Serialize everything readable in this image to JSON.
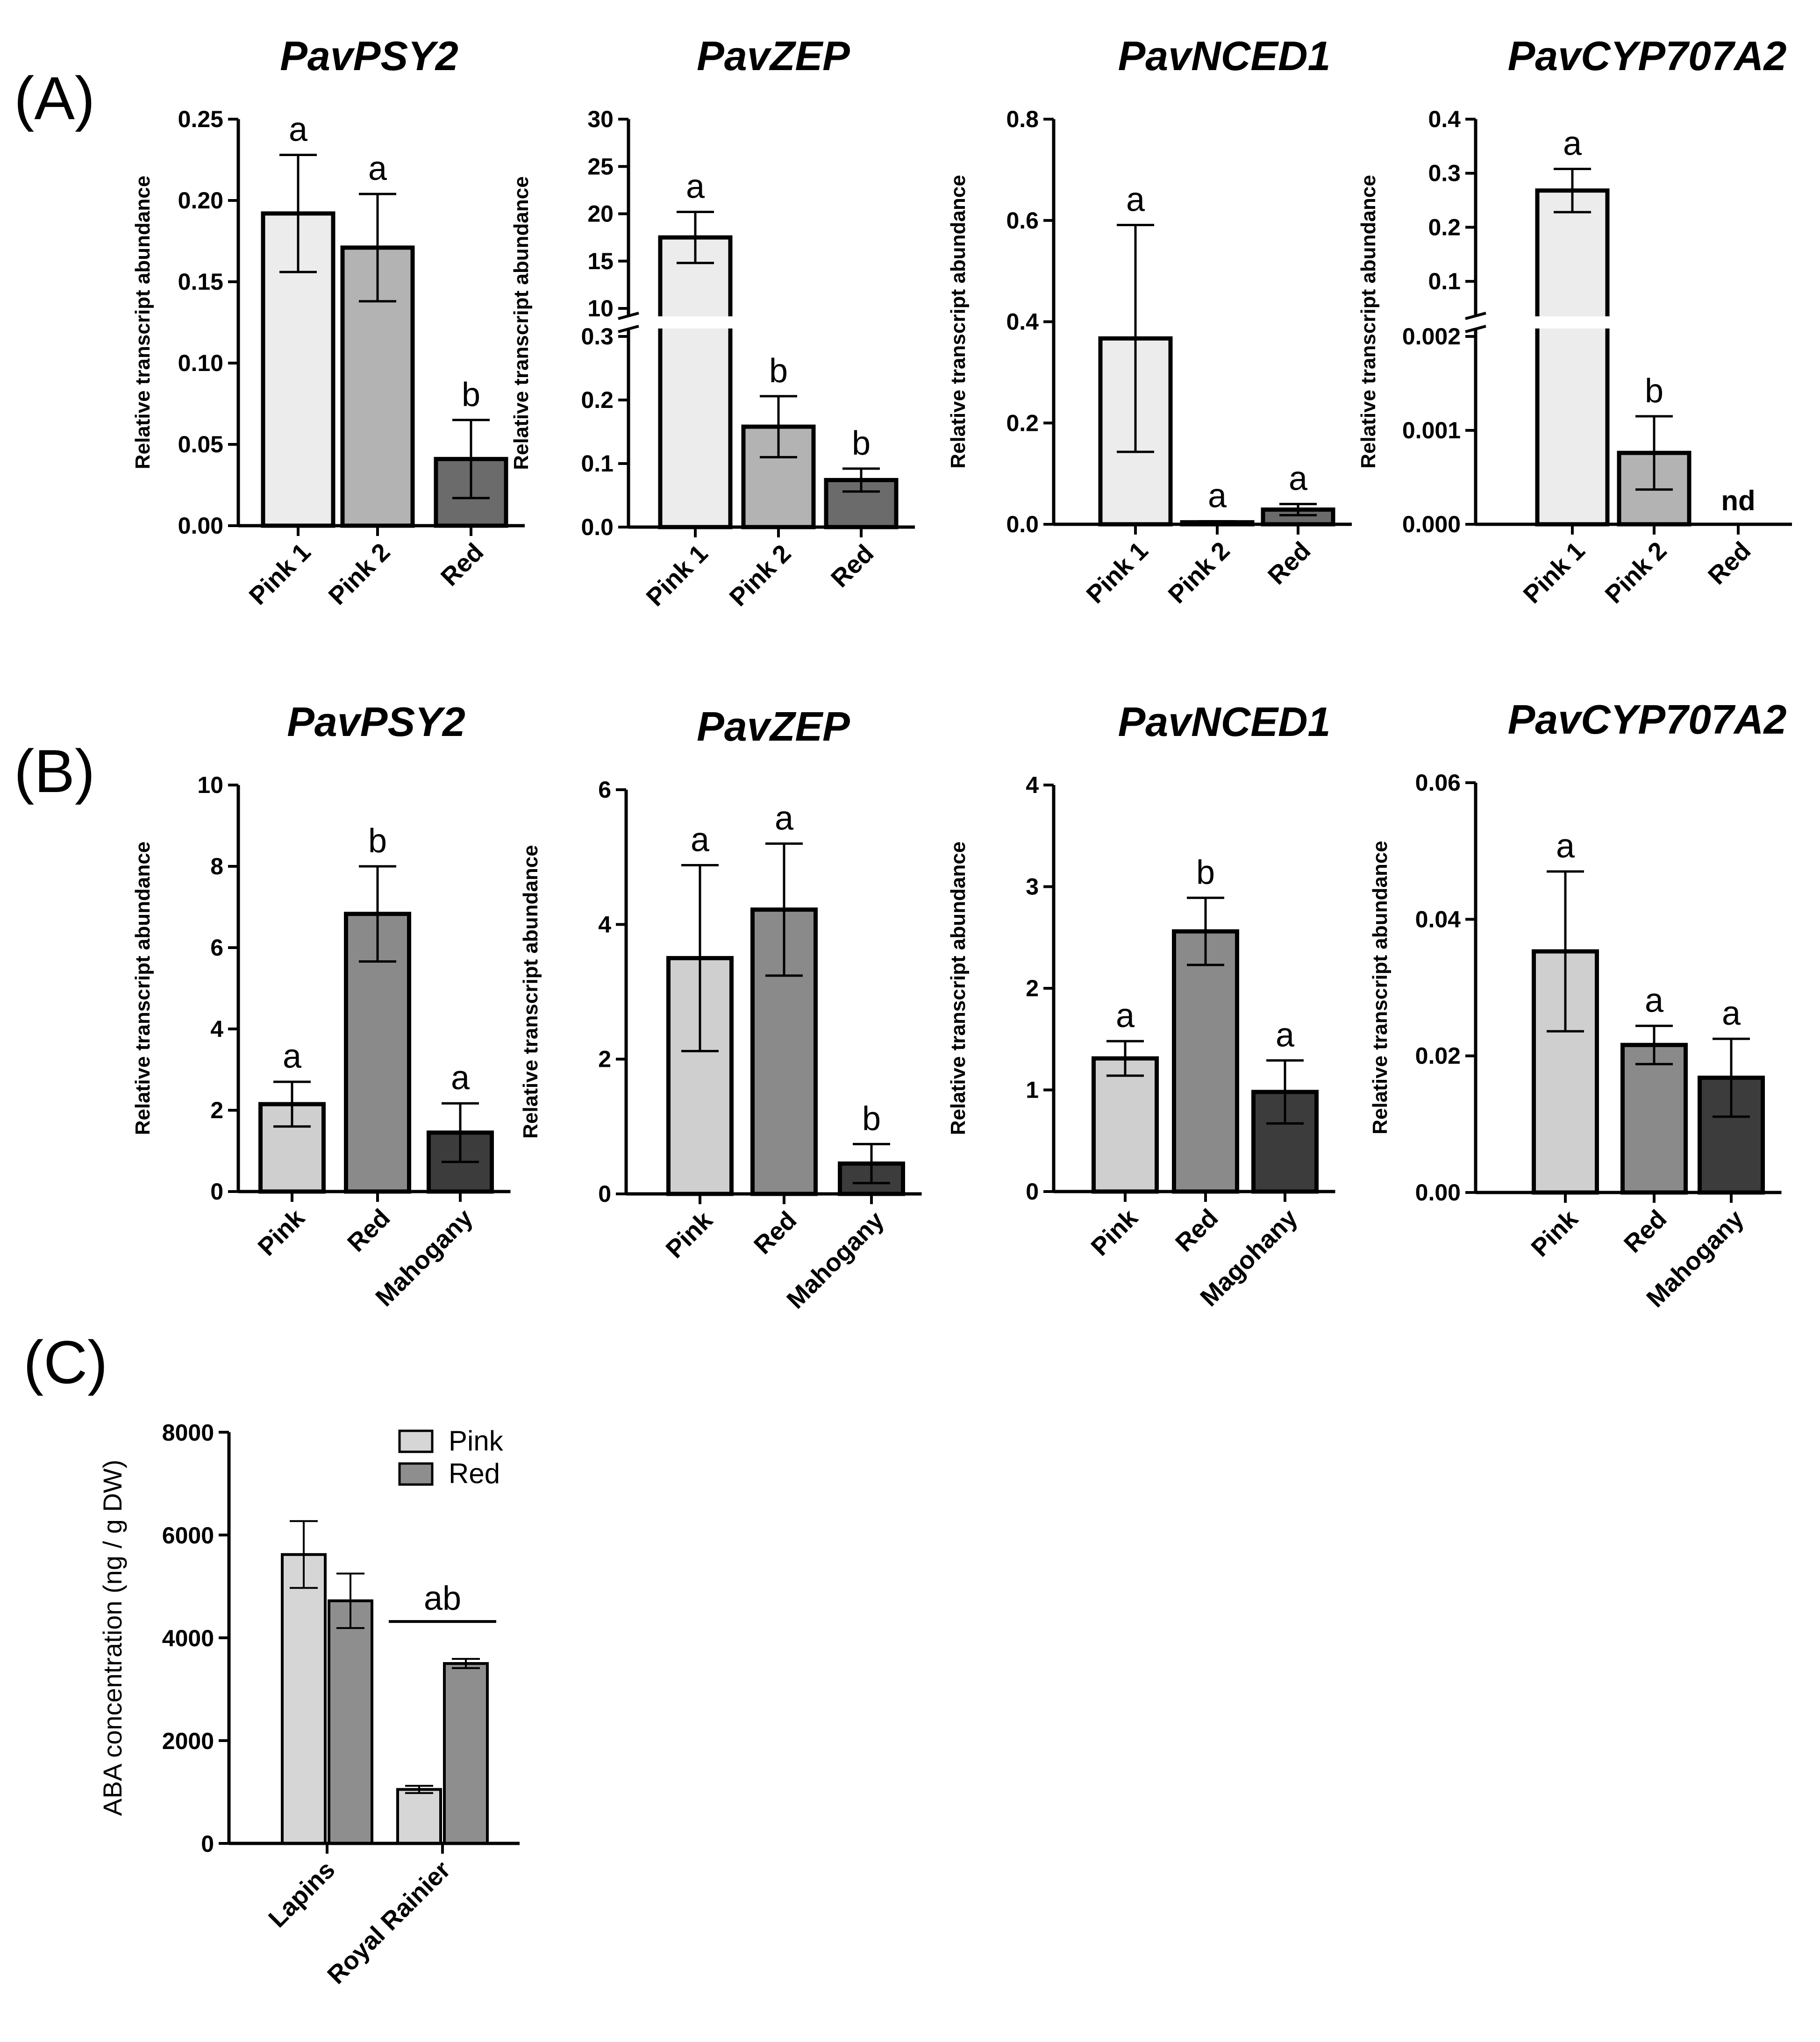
{
  "panel_labels": {
    "a": "(A)",
    "b": "(B)",
    "c": "(C)"
  },
  "colors": {
    "pink1": "#ececec",
    "pink2": "#b3b3b3",
    "red_a": "#6b6b6b",
    "pink_b": "#cfcfcf",
    "red_b": "#8a8a8a",
    "mahogany": "#3c3c3c",
    "abaPink": "#d6d6d6",
    "abaRed": "#8e8e8e"
  },
  "chart_data": [
    {
      "id": "A1",
      "type": "bar",
      "title": "PavPSY2",
      "ylabel": "Relative transcript abundance",
      "categories": [
        "Pink 1",
        "Pink 2",
        "Red"
      ],
      "values": [
        0.192,
        0.171,
        0.041
      ],
      "errors": [
        0.036,
        0.033,
        0.024
      ],
      "significance": [
        "a",
        "a",
        "b"
      ],
      "colors": [
        "pink1",
        "pink2",
        "red_a"
      ],
      "ylim": [
        0,
        0.25
      ],
      "ticks": [
        0,
        0.05,
        0.1,
        0.15,
        0.2,
        0.25
      ],
      "tick_labels": [
        "0.00",
        "0.05",
        "0.10",
        "0.15",
        "0.20",
        "0.25"
      ]
    },
    {
      "id": "A2",
      "type": "bar",
      "title": "PavZEP",
      "ylabel": "Relative transcript abundance",
      "categories": [
        "Pink 1",
        "Pink 2",
        "Red"
      ],
      "values": [
        17.5,
        0.158,
        0.074
      ],
      "errors": [
        2.7,
        0.048,
        0.018
      ],
      "significance": [
        "a",
        "b",
        "b"
      ],
      "colors": [
        "pink1",
        "pink2",
        "red_a"
      ],
      "axis_break": {
        "lower": [
          0,
          0.3
        ],
        "upper": [
          10,
          30
        ]
      },
      "ticks": [
        0,
        0.1,
        0.2,
        0.3,
        10,
        15,
        20,
        25,
        30
      ],
      "tick_labels": [
        "0.0",
        "0.1",
        "0.2",
        "0.3",
        "10",
        "15",
        "20",
        "25",
        "30"
      ]
    },
    {
      "id": "A3",
      "type": "bar",
      "title": "PavNCED1",
      "ylabel": "Relative transcript abundance",
      "categories": [
        "Pink 1",
        "Pink 2",
        "Red"
      ],
      "values": [
        0.367,
        0.004,
        0.029
      ],
      "errors": [
        0.224,
        0.002,
        0.011
      ],
      "significance": [
        "a",
        "a",
        "a"
      ],
      "colors": [
        "pink1",
        "pink2",
        "red_a"
      ],
      "ylim": [
        0,
        0.8
      ],
      "ticks": [
        0,
        0.2,
        0.4,
        0.6,
        0.8
      ],
      "tick_labels": [
        "0.0",
        "0.2",
        "0.4",
        "0.6",
        "0.8"
      ]
    },
    {
      "id": "A4",
      "type": "bar",
      "title": "PavCYP707A2",
      "ylabel": "Relative transcript abundance",
      "categories": [
        "Pink 1",
        "Pink 2",
        "Red"
      ],
      "values": [
        0.268,
        0.00076,
        null
      ],
      "errors": [
        0.04,
        0.00039,
        null
      ],
      "significance": [
        "a",
        "b",
        "nd"
      ],
      "colors": [
        "pink1",
        "pink2",
        "red_a"
      ],
      "axis_break": {
        "lower": [
          0,
          0.002
        ],
        "upper": [
          0.05,
          0.4
        ]
      },
      "ticks": [
        0,
        0.001,
        0.002,
        0.1,
        0.2,
        0.3,
        0.4
      ],
      "tick_labels": [
        "0.000",
        "0.001",
        "0.002",
        "0.1",
        "0.2",
        "0.3",
        "0.4"
      ]
    },
    {
      "id": "B1",
      "type": "bar",
      "title": "PavPSY2",
      "ylabel": "Relative transcript abundance",
      "categories": [
        "Pink",
        "Red",
        "Mahogany"
      ],
      "values": [
        2.15,
        6.83,
        1.45
      ],
      "errors": [
        0.55,
        1.17,
        0.72
      ],
      "significance": [
        "a",
        "b",
        "a"
      ],
      "colors": [
        "pink_b",
        "red_b",
        "mahogany"
      ],
      "ylim": [
        0,
        10
      ],
      "ticks": [
        0,
        2,
        4,
        6,
        8,
        10
      ],
      "tick_labels": [
        "0",
        "2",
        "4",
        "6",
        "8",
        "10"
      ]
    },
    {
      "id": "B2",
      "type": "bar",
      "title": "PavZEP",
      "ylabel": "Relative transcript abundance",
      "categories": [
        "Pink",
        "Red",
        "Mahogany"
      ],
      "values": [
        3.5,
        4.22,
        0.45
      ],
      "errors": [
        1.38,
        0.98,
        0.29
      ],
      "significance": [
        "a",
        "a",
        "b"
      ],
      "colors": [
        "pink_b",
        "red_b",
        "mahogany"
      ],
      "ylim": [
        0,
        6
      ],
      "ticks": [
        0,
        2,
        4,
        6
      ],
      "tick_labels": [
        "0",
        "2",
        "4",
        "6"
      ]
    },
    {
      "id": "B3",
      "type": "bar",
      "title": "PavNCED1",
      "ylabel": "Relative transcript abundance",
      "categories": [
        "Pink",
        "Red",
        "Magohany"
      ],
      "values": [
        1.31,
        2.56,
        0.98
      ],
      "errors": [
        0.17,
        0.33,
        0.31
      ],
      "significance": [
        "a",
        "b",
        "a"
      ],
      "colors": [
        "pink_b",
        "red_b",
        "mahogany"
      ],
      "ylim": [
        0,
        4
      ],
      "ticks": [
        0,
        1,
        2,
        3,
        4
      ],
      "tick_labels": [
        "0",
        "1",
        "2",
        "3",
        "4"
      ]
    },
    {
      "id": "B4",
      "type": "bar",
      "title": "PavCYP707A2",
      "ylabel": "Relative transcript abundance",
      "categories": [
        "Pink",
        "Red",
        "Mahogany"
      ],
      "values": [
        0.0353,
        0.0216,
        0.0168
      ],
      "errors": [
        0.0117,
        0.0028,
        0.0057
      ],
      "significance": [
        "a",
        "a",
        "a"
      ],
      "colors": [
        "pink_b",
        "red_b",
        "mahogany"
      ],
      "ylim": [
        0,
        0.06
      ],
      "ticks": [
        0,
        0.02,
        0.04,
        0.06
      ],
      "tick_labels": [
        "0.00",
        "0.02",
        "0.04",
        "0.06"
      ]
    },
    {
      "id": "C",
      "type": "grouped-bar",
      "title": "",
      "ylabel": "ABA concentration (ng / g DW)",
      "categories": [
        "Lapins",
        "Royal Rainier"
      ],
      "series": [
        {
          "name": "Pink",
          "color": "abaPink",
          "values": [
            5620,
            1050
          ],
          "errors": [
            650,
            70
          ]
        },
        {
          "name": "Red",
          "color": "abaRed",
          "values": [
            4720,
            3500
          ],
          "errors": [
            530,
            90
          ]
        }
      ],
      "annotation": {
        "text": "ab",
        "category": "Royal Rainier"
      },
      "ylim": [
        0,
        8000
      ],
      "ticks": [
        0,
        2000,
        4000,
        6000,
        8000
      ],
      "tick_labels": [
        "0",
        "2000",
        "4000",
        "6000",
        "8000"
      ],
      "legend_position": "top-right"
    }
  ]
}
